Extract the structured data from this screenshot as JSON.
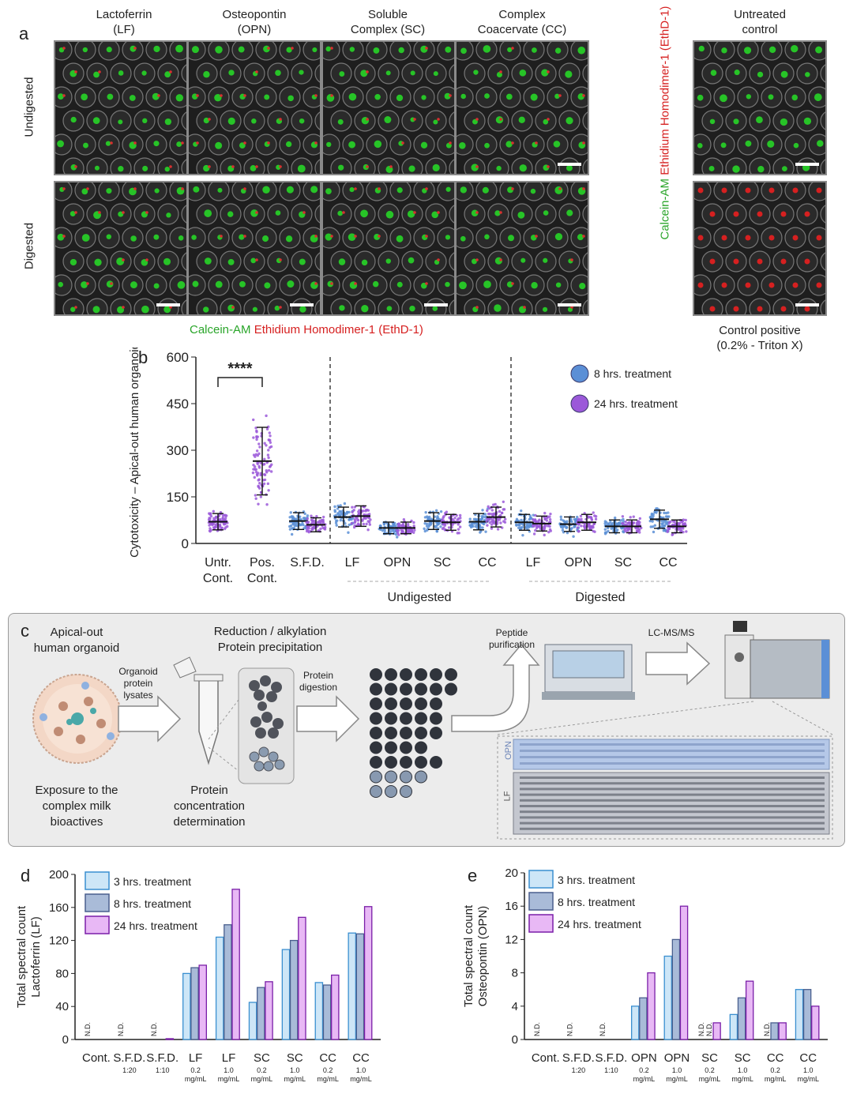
{
  "panel_a": {
    "letter": "a",
    "col_heads": [
      {
        "line1": "Lactoferrin",
        "line2": "(LF)"
      },
      {
        "line1": "Osteopontin",
        "line2": "(OPN)"
      },
      {
        "line1": "Soluble",
        "line2": "Complex (SC)"
      },
      {
        "line1": "Complex",
        "line2": "Coacervate (CC)"
      },
      {
        "line1": "Untreated",
        "line2": "control"
      }
    ],
    "row_labels": [
      "Undigested",
      "Digested"
    ],
    "stain_green": "Calcein-AM",
    "stain_red": "Ethidium Homodimer-1 (EthD-1)",
    "control_positive_line1": "Control positive",
    "control_positive_line2": "(0.2% - Triton X)"
  },
  "panel_b": {
    "letter": "b",
    "significance": "****",
    "group_undigested": "Undigested",
    "group_digested": "Digested"
  },
  "panel_c": {
    "letter": "c",
    "organoid_title_1": "Apical-out",
    "organoid_title_2": "human organoid",
    "organoid_lysates_1": "Organoid",
    "organoid_lysates_2": "protein",
    "organoid_lysates_3": "lysates",
    "exposure_1": "Exposure to the",
    "exposure_2": "complex milk",
    "exposure_3": "bioactives",
    "reduction_1": "Reduction / alkylation",
    "reduction_2": "Protein precipitation",
    "protein_conc_1": "Protein",
    "protein_conc_2": "concentration",
    "protein_conc_3": "determination",
    "digestion_1": "Protein",
    "digestion_2": "digestion",
    "peptide_1": "Peptide",
    "peptide_2": "purification",
    "lcms": "LC-MS/MS",
    "opn_label": "OPN",
    "lf_label": "LF"
  },
  "panel_d_letter": "d",
  "panel_e_letter": "e",
  "colors": {
    "blue_8h": "#5b8fd6",
    "purple_24h": "#9b59d9",
    "bar_3h": "#cde6f7",
    "bar_3h_edge": "#3a8fd0",
    "bar_8h": "#a9bbd8",
    "bar_8h_edge": "#4a5f8e",
    "bar_24h": "#e8b8f5",
    "bar_24h_edge": "#7a1fa8"
  },
  "chart_data": [
    {
      "id": "b",
      "type": "scatter",
      "ylabel": "Cytotoxicity – Apical-out human organoid",
      "ylim": [
        0,
        600
      ],
      "yticks": [
        0,
        150,
        300,
        450,
        600
      ],
      "categories": [
        "Untr. Cont.",
        "Pos. Cont.",
        "S.F.D.",
        "LF",
        "OPN",
        "SC",
        "CC",
        "LF",
        "OPN",
        "SC",
        "CC"
      ],
      "series": [
        {
          "name": "8 hrs. treatment",
          "means": [
            null,
            null,
            72,
            85,
            50,
            72,
            70,
            68,
            62,
            55,
            78
          ]
        },
        {
          "name": "24 hrs. treatment",
          "means": [
            70,
            265,
            60,
            88,
            50,
            68,
            85,
            64,
            68,
            55,
            55
          ]
        }
      ],
      "sd": {
        "Pos. Cont.": 145
      },
      "legend_position": "top-right"
    },
    {
      "id": "d",
      "type": "bar",
      "ylabel": "Total spectral count Lactoferrin (LF)",
      "ylim": [
        0,
        200
      ],
      "yticks": [
        0,
        40,
        80,
        120,
        160,
        200
      ],
      "categories": [
        "Cont.",
        "S.F.D.",
        "S.F.D.",
        "LF",
        "LF",
        "SC",
        "SC",
        "CC",
        "CC"
      ],
      "sublabels": [
        "",
        "1:20",
        "1:10",
        "0.2 mg/mL",
        "1.0 mg/mL",
        "0.2 mg/mL",
        "1.0 mg/mL",
        "0.2 mg/mL",
        "1.0 mg/mL"
      ],
      "series": [
        {
          "name": "3 hrs. treatment",
          "values": [
            0,
            0,
            0,
            80,
            124,
            45,
            109,
            69,
            129
          ]
        },
        {
          "name": "8 hrs. treatment",
          "values": [
            null,
            null,
            null,
            87,
            139,
            63,
            120,
            66,
            128
          ]
        },
        {
          "name": "24 hrs. treatment",
          "values": [
            null,
            null,
            1,
            90,
            182,
            70,
            148,
            78,
            161
          ]
        }
      ],
      "nd_label": "N.D.",
      "legend_position": "top-left"
    },
    {
      "id": "e",
      "type": "bar",
      "ylabel": "Total spectral count Osteopontin (OPN)",
      "ylim": [
        0,
        20
      ],
      "yticks": [
        0,
        4,
        8,
        12,
        16,
        20
      ],
      "categories": [
        "Cont.",
        "S.F.D.",
        "S.F.D.",
        "OPN",
        "OPN",
        "SC",
        "SC",
        "CC",
        "CC"
      ],
      "sublabels": [
        "",
        "1:20",
        "1:10",
        "0.2 mg/mL",
        "1.0 mg/mL",
        "0.2 mg/mL",
        "1.0 mg/mL",
        "0.2 mg/mL",
        "1.0 mg/mL"
      ],
      "series": [
        {
          "name": "3 hrs. treatment",
          "values": [
            0,
            0,
            0,
            4,
            10,
            0,
            3,
            0,
            6
          ]
        },
        {
          "name": "8 hrs. treatment",
          "values": [
            null,
            null,
            null,
            5,
            12,
            0,
            5,
            2,
            6
          ]
        },
        {
          "name": "24 hrs. treatment",
          "values": [
            null,
            null,
            null,
            8,
            16,
            2,
            7,
            2,
            4
          ]
        }
      ],
      "nd_label": "N.D.",
      "legend_position": "top-left"
    }
  ]
}
